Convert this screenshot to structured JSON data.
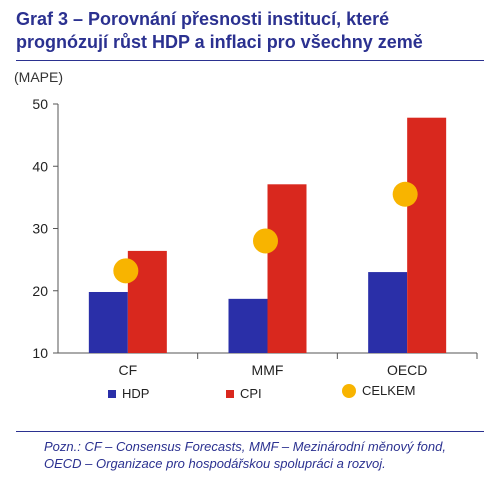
{
  "title": "Graf 3 – Porovnání přesnosti institucí, které prognózují růst HDP a inflaci pro všechny země",
  "note": "Pozn.: CF – Consensus Forecasts, MMF – Mezinárodní měnový fond, OECD – Organizace pro hospodářskou spolupráci a rozvoj.",
  "colors": {
    "hdp": "#2a2fa8",
    "cpi": "#d9281e",
    "celkem": "#f8b400",
    "title": "#2b3190"
  },
  "chart_data": {
    "type": "bar",
    "ylabel": "(MAPE)",
    "ylim": [
      10,
      50
    ],
    "yticks": [
      10,
      20,
      30,
      40,
      50
    ],
    "grid": false,
    "legend_position": "bottom",
    "categories": [
      "CF",
      "MMF",
      "OECD"
    ],
    "series": [
      {
        "name": "HDP",
        "kind": "bar",
        "values": [
          19.8,
          18.7,
          23.0
        ]
      },
      {
        "name": "CPI",
        "kind": "bar",
        "values": [
          26.4,
          37.1,
          47.8
        ]
      },
      {
        "name": "CELKEM",
        "kind": "point",
        "values": [
          23.2,
          28.0,
          35.5
        ]
      }
    ]
  }
}
